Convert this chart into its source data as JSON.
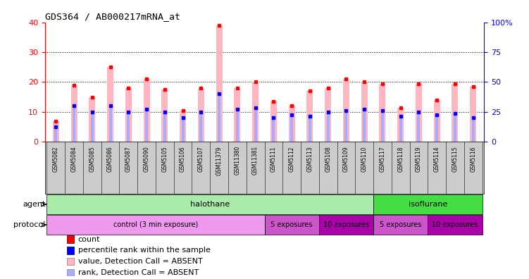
{
  "title": "GDS364 / AB000217mRNA_at",
  "samples": [
    "GSM5082",
    "GSM5084",
    "GSM5085",
    "GSM5086",
    "GSM5087",
    "GSM5090",
    "GSM5105",
    "GSM5106",
    "GSM5107",
    "GSM11379",
    "GSM11380",
    "GSM11381",
    "GSM5111",
    "GSM5112",
    "GSM5113",
    "GSM5108",
    "GSM5109",
    "GSM5110",
    "GSM5117",
    "GSM5118",
    "GSM5119",
    "GSM5114",
    "GSM5115",
    "GSM5116"
  ],
  "value_absent": [
    7,
    19,
    15,
    25,
    18,
    21,
    17.5,
    10.5,
    18,
    39,
    18,
    20,
    13.5,
    12,
    17,
    18,
    21,
    20,
    19.5,
    11.5,
    19.5,
    14,
    19.5,
    18.5
  ],
  "rank_absent": [
    5,
    12,
    10,
    12,
    10,
    11,
    10,
    8,
    10,
    16,
    11,
    11.5,
    8,
    9,
    8.5,
    10,
    10.5,
    11,
    10.5,
    8.5,
    10,
    9,
    9.5,
    8
  ],
  "ylim_left": [
    0,
    40
  ],
  "ylim_right": [
    0,
    100
  ],
  "yticks_left": [
    0,
    10,
    20,
    30,
    40
  ],
  "yticks_right": [
    0,
    25,
    50,
    75,
    100
  ],
  "ytick_labels_right": [
    "0",
    "25",
    "50",
    "75",
    "100%"
  ],
  "agent_groups": [
    {
      "label": "halothane",
      "start": 0,
      "end": 18,
      "color": "#AAEAAA"
    },
    {
      "label": "isoflurane",
      "start": 18,
      "end": 24,
      "color": "#44DD44"
    }
  ],
  "protocol_groups": [
    {
      "label": "control (3 min exposure)",
      "start": 0,
      "end": 12,
      "color": "#EE99EE"
    },
    {
      "label": "5 exposures",
      "start": 12,
      "end": 15,
      "color": "#CC55CC"
    },
    {
      "label": "10 exposures",
      "start": 15,
      "end": 18,
      "color": "#AA00AA"
    },
    {
      "label": "5 exposures",
      "start": 18,
      "end": 21,
      "color": "#CC55CC"
    },
    {
      "label": "10 exposures",
      "start": 21,
      "end": 24,
      "color": "#AA00AA"
    }
  ],
  "bar_color_absent": "#FFB6C1",
  "rank_color_absent": "#AAAAFF",
  "count_color": "#FF0000",
  "rank_color": "#0000FF",
  "bg_color": "#FFFFFF",
  "plot_bg": "#FFFFFF",
  "sample_band_color": "#CCCCCC",
  "legend_items": [
    {
      "color": "#FF0000",
      "label": "count"
    },
    {
      "color": "#0000FF",
      "label": "percentile rank within the sample"
    },
    {
      "color": "#FFB6C1",
      "label": "value, Detection Call = ABSENT"
    },
    {
      "color": "#AAAAFF",
      "label": "rank, Detection Call = ABSENT"
    }
  ]
}
